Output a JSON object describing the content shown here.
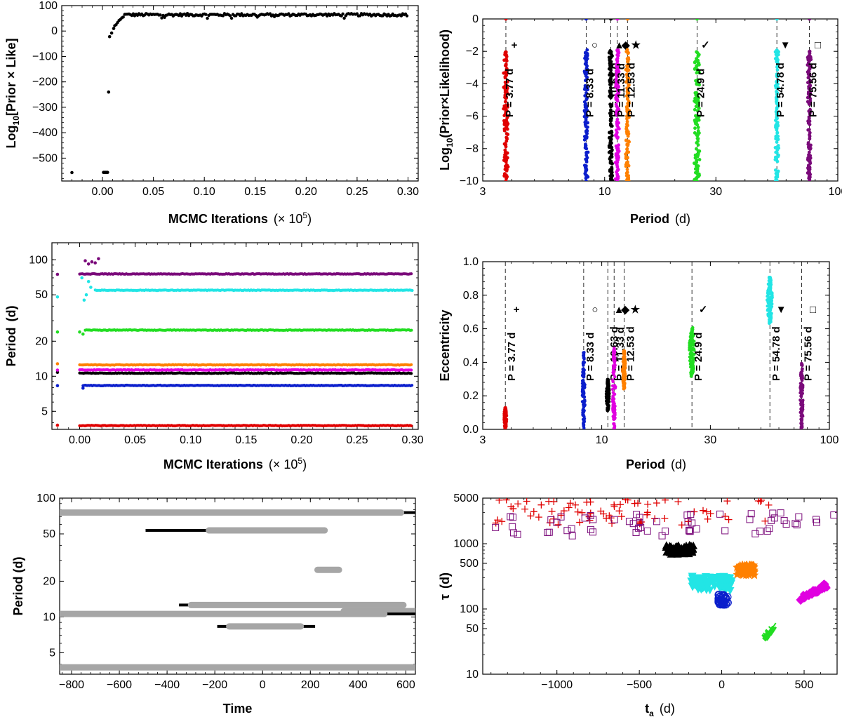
{
  "chart_data": [
    {
      "id": "p1",
      "type": "scatter",
      "xlabel": "MCMC Iterations",
      "xlabel_unit": "(× 10",
      "xlabel_exp": "5",
      "ylabel": "Log",
      "ylabel_sub": "10",
      "ylabel_rest": "[Prior × Like]",
      "xlim": [
        -0.04,
        0.31
      ],
      "ylim": [
        -590,
        100
      ],
      "xticks": [
        0.0,
        0.05,
        0.1,
        0.15,
        0.2,
        0.25,
        0.3
      ],
      "xtick_labels": [
        "0.00",
        "0.05",
        "0.10",
        "0.15",
        "0.20",
        "0.25",
        "0.30"
      ],
      "yticks": [
        100,
        0,
        -100,
        -200,
        -300,
        -400,
        -500
      ],
      "ytick_labels": [
        "100",
        "0",
        "−100",
        "−200",
        "−300",
        "−400",
        "−500"
      ],
      "points": [
        [
          -0.03,
          -557
        ],
        [
          0.001,
          -556
        ],
        [
          0.002,
          -556
        ],
        [
          0.003,
          -556
        ],
        [
          0.004,
          -556
        ],
        [
          0.005,
          -556
        ],
        [
          0.006,
          -240
        ],
        [
          0.007,
          -22
        ],
        [
          0.009,
          -8
        ],
        [
          0.011,
          10
        ]
      ],
      "plateau": {
        "x_start": 0.012,
        "x_end": 0.3,
        "x_step": 0.0014,
        "rise_end": 0.022,
        "level": 64,
        "noise": 5
      }
    },
    {
      "id": "p2",
      "type": "scatter",
      "xlabel": "Period",
      "xlabel_unit": "(d)",
      "ylabel": "Log",
      "ylabel_sub": "10",
      "ylabel_rest": "(Prior×Likelihood)",
      "xscale": "log",
      "xlim": [
        3,
        100
      ],
      "ylim": [
        -10,
        0
      ],
      "xticks": [
        3,
        10,
        30,
        100
      ],
      "xtick_labels": [
        "3",
        "10",
        "30",
        "100"
      ],
      "yticks": [
        0,
        -2,
        -4,
        -6,
        -8,
        -10
      ],
      "ytick_labels": [
        "0",
        "−2",
        "−4",
        "−6",
        "−8",
        "−10"
      ],
      "series": [
        {
          "name": "P = 3.77 d",
          "period": 3.77,
          "symbol": "+",
          "color": "#e00000",
          "top": -2,
          "spread": 0.025
        },
        {
          "name": "P = 8.33 d",
          "period": 8.33,
          "symbol": "○",
          "color": "#0b1ecc",
          "top": -1.9,
          "spread": 0.02
        },
        {
          "name": "P = 10.63 d",
          "period": 10.63,
          "symbol": "▲",
          "color": "#000000",
          "top": -1.9,
          "spread": 0.02
        },
        {
          "name": "P = 11.33 d",
          "period": 11.33,
          "symbol": "◆",
          "color": "#e000e0",
          "top": -1.9,
          "spread": 0.02
        },
        {
          "name": "P = 12.53 d",
          "period": 12.53,
          "symbol": "★",
          "color": "#ff8000",
          "top": -1.9,
          "spread": 0.02
        },
        {
          "name": "P = 24.9 d",
          "period": 24.9,
          "symbol": "✓",
          "color": "#22dd22",
          "top": -2.0,
          "spread": 0.03
        },
        {
          "name": "P = 54.78 d",
          "period": 54.78,
          "symbol": "▼",
          "color": "#22e5e5",
          "top": -1.9,
          "spread": 0.02
        },
        {
          "name": "P = 75.56 d",
          "period": 75.56,
          "symbol": "□",
          "color": "#7a0a7a",
          "top": -1.9,
          "spread": 0.02
        }
      ]
    },
    {
      "id": "p3",
      "type": "scatter",
      "xlabel": "MCMC Iterations",
      "xlabel_unit": "(× 10",
      "xlabel_exp": "5",
      "ylabel": "Period",
      "ylabel_rest": "(d)",
      "yscale": "log",
      "xlim": [
        -0.025,
        0.305
      ],
      "ylim": [
        3.5,
        140
      ],
      "xticks": [
        0.0,
        0.05,
        0.1,
        0.15,
        0.2,
        0.25,
        0.3
      ],
      "xtick_labels": [
        "0.00",
        "0.05",
        "0.10",
        "0.15",
        "0.20",
        "0.25",
        "0.30"
      ],
      "yticks": [
        5,
        10,
        20,
        50,
        100
      ],
      "ytick_labels": [
        "5",
        "10",
        "20",
        "50",
        "100"
      ],
      "series": [
        {
          "name": "P = 3.77 d",
          "period": 3.77,
          "color": "#e00000",
          "start": 0.0,
          "early": [
            [
              -0.02,
              3.8
            ]
          ]
        },
        {
          "name": "P = 8.33 d",
          "period": 8.33,
          "color": "#0b1ecc",
          "start": 0.003,
          "early": [
            [
              -0.02,
              8.3
            ],
            [
              0.003,
              7.9
            ]
          ]
        },
        {
          "name": "P = 10.63 d",
          "period": 10.63,
          "color": "#000000",
          "start": 0.0,
          "early": [
            [
              -0.02,
              10.8
            ]
          ]
        },
        {
          "name": "P = 11.33 d",
          "period": 11.33,
          "color": "#e000e0",
          "start": 0.0,
          "early": [
            [
              -0.02,
              11.3
            ]
          ]
        },
        {
          "name": "P = 12.53 d",
          "period": 12.53,
          "color": "#ff8000",
          "start": 0.0,
          "early": [
            [
              -0.02,
              12.8
            ]
          ]
        },
        {
          "name": "P = 24.9 d",
          "period": 24.9,
          "color": "#22dd22",
          "start": 0.005,
          "early": [
            [
              -0.02,
              24
            ],
            [
              0.0,
              24
            ],
            [
              0.003,
              23
            ]
          ]
        },
        {
          "name": "P = 54.78 d",
          "period": 54.78,
          "color": "#22e5e5",
          "start": 0.014,
          "early": [
            [
              -0.02,
              48
            ],
            [
              0.002,
              70
            ],
            [
              0.004,
              45
            ],
            [
              0.006,
              50
            ],
            [
              0.008,
              65
            ],
            [
              0.01,
              58
            ]
          ]
        },
        {
          "name": "P = 75.56 d",
          "period": 75.56,
          "color": "#7a0a7a",
          "start": 0.0,
          "early": [
            [
              -0.02,
              75
            ],
            [
              0.005,
              98
            ],
            [
              0.008,
              92
            ],
            [
              0.011,
              96
            ],
            [
              0.014,
              94
            ],
            [
              0.017,
              102
            ]
          ]
        }
      ]
    },
    {
      "id": "p4",
      "type": "scatter",
      "xlabel": "Period",
      "xlabel_unit": "(d)",
      "ylabel": "Eccentricity",
      "xscale": "log",
      "xlim": [
        3,
        100
      ],
      "ylim": [
        0,
        1
      ],
      "xticks": [
        3,
        10,
        30,
        100
      ],
      "xtick_labels": [
        "3",
        "10",
        "30",
        "100"
      ],
      "yticks": [
        0.0,
        0.2,
        0.4,
        0.6,
        0.8,
        1.0
      ],
      "ytick_labels": [
        "0.0",
        "0.2",
        "0.4",
        "0.6",
        "0.8",
        "1.0"
      ],
      "series": [
        {
          "name": "P = 3.77 d",
          "period": 3.77,
          "symbol": "+",
          "color": "#e00000",
          "emin": 0.0,
          "emax": 0.13,
          "spread": 0.01
        },
        {
          "name": "P = 8.33 d",
          "period": 8.33,
          "symbol": "○",
          "color": "#0b1ecc",
          "emin": 0.0,
          "emax": 0.46,
          "spread": 0.01
        },
        {
          "name": "P = 10.63 d",
          "period": 10.63,
          "symbol": "▲",
          "color": "#000000",
          "emin": 0.11,
          "emax": 0.3,
          "spread": 0.012
        },
        {
          "name": "P = 11.33 d",
          "period": 11.33,
          "symbol": "◆",
          "color": "#e000e0",
          "emin": 0.0,
          "emax": 0.49,
          "spread": 0.012
        },
        {
          "name": "P = 12.53 d",
          "period": 12.53,
          "symbol": "★",
          "color": "#ff8000",
          "emin": 0.24,
          "emax": 0.47,
          "spread": 0.012
        },
        {
          "name": "P = 24.9 d",
          "period": 24.9,
          "symbol": "✓",
          "color": "#22dd22",
          "emin": 0.31,
          "emax": 0.61,
          "spread": 0.02
        },
        {
          "name": "P = 54.78 d",
          "period": 54.78,
          "symbol": "▼",
          "color": "#22e5e5",
          "emin": 0.63,
          "emax": 0.91,
          "spread": 0.02
        },
        {
          "name": "P = 75.56 d",
          "period": 75.56,
          "symbol": "□",
          "color": "#7a0a7a",
          "emin": 0.0,
          "emax": 0.4,
          "spread": 0.012
        }
      ]
    },
    {
      "id": "p5",
      "type": "line",
      "xlabel": "Time",
      "ylabel": "Period (d)",
      "yscale": "log",
      "xlim": [
        -850,
        640
      ],
      "ylim": [
        3.3,
        100
      ],
      "xticks": [
        -800,
        -600,
        -400,
        -200,
        0,
        200,
        400,
        600
      ],
      "xtick_labels": [
        "−800",
        "−600",
        "−400",
        "−200",
        "0",
        "200",
        "400",
        "600"
      ],
      "yticks": [
        5,
        10,
        20,
        50,
        100
      ],
      "ytick_labels": [
        "5",
        "10",
        "20",
        "50",
        "100"
      ],
      "bars": [
        {
          "period": 75.5,
          "black": [
            -850,
            640
          ],
          "gray": [
            -850,
            580
          ]
        },
        {
          "period": 53.5,
          "black": [
            -490,
            260
          ],
          "gray": [
            -225,
            260
          ]
        },
        {
          "period": 24.9,
          "black": null,
          "gray": [
            230,
            320
          ]
        },
        {
          "period": 12.6,
          "black": [
            -350,
            600
          ],
          "gray": [
            -300,
            590
          ]
        },
        {
          "period": 11.2,
          "black": [
            340,
            640
          ],
          "gray": [
            340,
            640
          ]
        },
        {
          "period": 10.6,
          "black": [
            -850,
            640
          ],
          "gray": [
            -850,
            510
          ]
        },
        {
          "period": 8.33,
          "black": [
            -190,
            220
          ],
          "gray": [
            -140,
            160
          ]
        },
        {
          "period": 3.77,
          "black": [
            -850,
            640
          ],
          "gray": [
            -850,
            640
          ]
        }
      ]
    },
    {
      "id": "p6",
      "type": "scatter",
      "xlabel": "t",
      "xlabel_sub": "a",
      "xlabel_unit": "(d)",
      "ylabel": "τ",
      "ylabel_rest": "(d)",
      "yscale": "log",
      "xlim": [
        -1450,
        700
      ],
      "ylim": [
        10,
        5000
      ],
      "xticks": [
        -1000,
        -500,
        0,
        500
      ],
      "xtick_labels": [
        "−1000",
        "−500",
        "0",
        "500"
      ],
      "yticks": [
        10,
        50,
        100,
        500,
        1000,
        5000
      ],
      "ytick_labels": [
        "10",
        "50",
        "100",
        "500",
        "1000",
        "5000"
      ],
      "clusters": [
        {
          "name": "P = 3.77 d",
          "symbol": "+",
          "color": "#e00000",
          "scatter": true,
          "x": [
            -1400,
            300
          ],
          "logy": [
            3.28,
            3.68
          ],
          "n": 75
        },
        {
          "name": "P = 75.56 d",
          "symbol": "□",
          "color": "#7a0a7a",
          "scatter": true,
          "x": [
            -1400,
            680
          ],
          "logy": [
            3.12,
            3.48
          ],
          "n": 60
        },
        {
          "name": "P = 10.63 d",
          "symbol": "▲",
          "color": "#000000",
          "x": [
            -340,
            -170
          ],
          "logy": [
            2.84,
            2.98
          ],
          "n": 80
        },
        {
          "name": "P = 12.53 d",
          "symbol": "★",
          "color": "#ff8000",
          "x": [
            90,
            200
          ],
          "logy": [
            2.52,
            2.68
          ],
          "n": 80
        },
        {
          "name": "P = 54.78 d",
          "symbol": "▼",
          "color": "#22e5e5",
          "x": [
            -190,
            60
          ],
          "logy": [
            2.28,
            2.5
          ],
          "n": 90
        },
        {
          "name": "P = 8.33 d",
          "symbol": "○",
          "color": "#0b1ecc",
          "x": [
            -20,
            40
          ],
          "logy": [
            2.06,
            2.22
          ],
          "n": 40
        },
        {
          "name": "P = 11.33 d",
          "symbol": "◆",
          "color": "#e000e0",
          "x": [
            470,
            640
          ],
          "logy": [
            2.15,
            2.37
          ],
          "n": 60
        },
        {
          "name": "P = 24.9 d",
          "symbol": "✓",
          "color": "#22dd22",
          "x": [
            260,
            310
          ],
          "logy": [
            1.55,
            1.7
          ],
          "n": 30
        }
      ]
    }
  ]
}
